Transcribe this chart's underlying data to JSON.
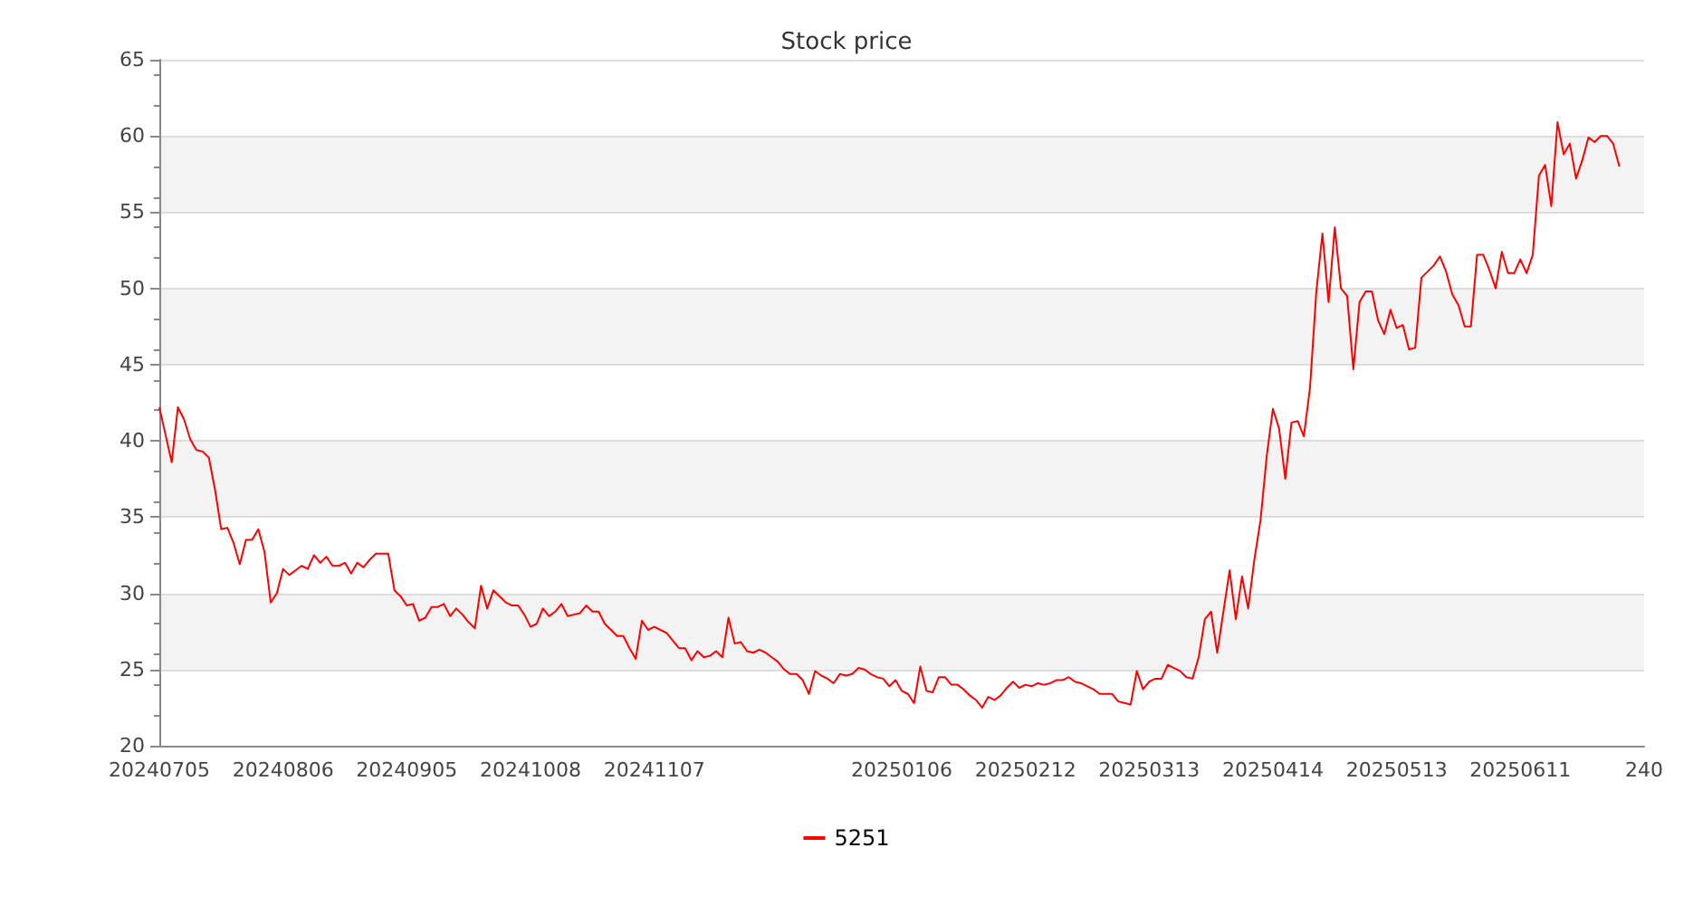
{
  "chart_data": {
    "type": "line",
    "title": "Stock price",
    "categories": [
      "20240705",
      null,
      null,
      null,
      null,
      null,
      null,
      null,
      null,
      null,
      null,
      null,
      null,
      null,
      null,
      null,
      null,
      null,
      null,
      null,
      "20240806",
      null,
      null,
      null,
      null,
      null,
      null,
      null,
      null,
      null,
      null,
      null,
      null,
      null,
      null,
      null,
      null,
      null,
      null,
      null,
      "20240905",
      null,
      null,
      null,
      null,
      null,
      null,
      null,
      null,
      null,
      null,
      null,
      null,
      null,
      null,
      null,
      null,
      null,
      null,
      null,
      "20241008",
      null,
      null,
      null,
      null,
      null,
      null,
      null,
      null,
      null,
      null,
      null,
      null,
      null,
      null,
      null,
      null,
      null,
      null,
      null,
      "20241107",
      null,
      null,
      null,
      null,
      null,
      null,
      null,
      null,
      null,
      null,
      null,
      null,
      null,
      null,
      null,
      null,
      null,
      null,
      null,
      null,
      null,
      null,
      null,
      null,
      null,
      null,
      null,
      null,
      null,
      null,
      null,
      null,
      null,
      null,
      null,
      null,
      null,
      null,
      null,
      "20250106",
      null,
      null,
      null,
      null,
      null,
      null,
      null,
      null,
      null,
      null,
      null,
      null,
      null,
      null,
      null,
      null,
      null,
      null,
      null,
      "20250212",
      null,
      null,
      null,
      null,
      null,
      null,
      null,
      null,
      null,
      null,
      null,
      null,
      null,
      null,
      null,
      null,
      null,
      null,
      null,
      "20250313",
      null,
      null,
      null,
      null,
      null,
      null,
      null,
      null,
      null,
      null,
      null,
      null,
      null,
      null,
      null,
      null,
      null,
      null,
      null,
      "20250414",
      null,
      null,
      null,
      null,
      null,
      null,
      null,
      null,
      null,
      null,
      null,
      null,
      null,
      null,
      null,
      null,
      null,
      null,
      null,
      "20250513",
      null,
      null,
      null,
      null,
      null,
      null,
      null,
      null,
      null,
      null,
      null,
      null,
      null,
      null,
      null,
      null,
      null,
      null,
      null,
      "20250611",
      null,
      null,
      null,
      null,
      null,
      null,
      null,
      null,
      null,
      null,
      null,
      null,
      null,
      null,
      null,
      null,
      null,
      null,
      null,
      "240"
    ],
    "series": [
      {
        "name": "5251",
        "color": "#ff0000",
        "values": [
          42.2,
          40.4,
          38.6,
          42.2,
          41.4,
          40.1,
          39.4,
          39.3,
          38.9,
          36.8,
          34.2,
          34.3,
          33.3,
          31.9,
          33.5,
          33.5,
          34.2,
          32.7,
          29.4,
          30.0,
          31.6,
          31.2,
          31.5,
          31.8,
          31.6,
          32.5,
          32.0,
          32.4,
          31.8,
          31.8,
          32.0,
          31.3,
          32.0,
          31.7,
          32.2,
          32.6,
          32.6,
          32.6,
          30.2,
          29.8,
          29.2,
          29.3,
          28.2,
          28.4,
          29.1,
          29.1,
          29.3,
          28.5,
          29.0,
          28.6,
          28.1,
          27.7,
          30.5,
          29.0,
          30.2,
          29.8,
          29.4,
          29.2,
          29.2,
          28.6,
          27.8,
          28.0,
          29.0,
          28.5,
          28.8,
          29.3,
          28.5,
          28.6,
          28.7,
          29.2,
          28.8,
          28.8,
          28.0,
          27.6,
          27.2,
          27.2,
          26.4,
          25.7,
          28.2,
          27.6,
          27.8,
          27.6,
          27.4,
          26.9,
          26.4,
          26.4,
          25.6,
          26.2,
          25.8,
          25.9,
          26.2,
          25.8,
          28.4,
          26.7,
          26.8,
          26.2,
          26.1,
          26.3,
          26.1,
          25.8,
          25.5,
          25.0,
          24.7,
          24.7,
          24.3,
          23.4,
          24.9,
          24.6,
          24.4,
          24.1,
          24.7,
          24.6,
          24.7,
          25.1,
          25.0,
          24.7,
          24.5,
          24.4,
          23.9,
          24.3,
          23.6,
          23.4,
          22.8,
          25.2,
          23.6,
          23.5,
          24.5,
          24.5,
          24.0,
          24.0,
          23.7,
          23.3,
          23.0,
          22.5,
          23.2,
          23.0,
          23.3,
          23.8,
          24.2,
          23.8,
          24.0,
          23.9,
          24.1,
          24.0,
          24.1,
          24.3,
          24.3,
          24.5,
          24.2,
          24.1,
          23.9,
          23.7,
          23.4,
          23.4,
          23.4,
          22.9,
          22.8,
          22.7,
          24.9,
          23.7,
          24.2,
          24.4,
          24.4,
          25.3,
          25.1,
          24.9,
          24.5,
          24.4,
          25.8,
          28.3,
          28.8,
          26.1,
          28.8,
          31.5,
          28.3,
          31.1,
          29.0,
          32.2,
          34.8,
          39.0,
          42.1,
          40.8,
          37.5,
          41.2,
          41.3,
          40.3,
          43.5,
          49.7,
          53.6,
          49.1,
          54.0,
          50.0,
          49.5,
          44.7,
          49.1,
          49.8,
          49.8,
          47.9,
          47.0,
          48.6,
          47.4,
          47.6,
          46.0,
          46.1,
          50.7,
          51.1,
          51.5,
          52.1,
          51.1,
          49.6,
          48.9,
          47.5,
          47.5,
          52.2,
          52.2,
          51.2,
          50.0,
          52.4,
          51.0,
          51.0,
          51.9,
          51.0,
          52.2,
          57.4,
          58.1,
          55.4,
          60.9,
          58.8,
          59.5,
          57.2,
          58.4,
          59.9,
          59.6,
          60.0,
          60.0,
          59.5,
          58.0,
          null,
          null,
          null,
          null
        ]
      }
    ],
    "ylim": [
      20,
      65
    ],
    "yticks": [
      20,
      25,
      30,
      35,
      40,
      45,
      50,
      55,
      60,
      65
    ],
    "grid": "y",
    "legend": "bottom",
    "marker": "none"
  }
}
